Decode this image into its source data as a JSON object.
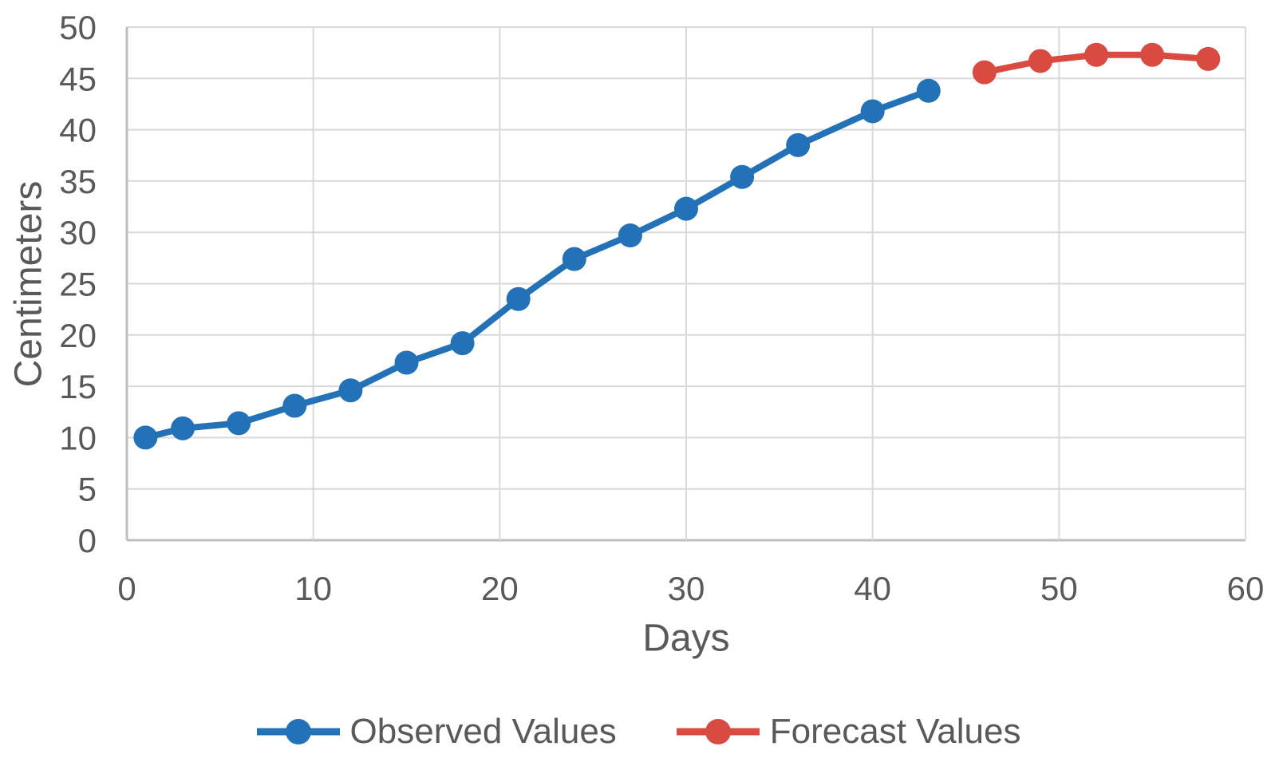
{
  "chart_data": {
    "type": "line",
    "title": "",
    "xlabel": "Days",
    "ylabel": "Centimeters",
    "xlim": [
      0,
      60
    ],
    "ylim": [
      0,
      50
    ],
    "xticks": [
      0,
      10,
      20,
      30,
      40,
      50,
      60
    ],
    "yticks": [
      0,
      5,
      10,
      15,
      20,
      25,
      30,
      35,
      40,
      45,
      50
    ],
    "grid": "both",
    "legend_position": "bottom-center",
    "series": [
      {
        "name": "Observed Values",
        "color": "#2372B7",
        "x": [
          1,
          3,
          6,
          9,
          12,
          15,
          18,
          21,
          24,
          27,
          30,
          33,
          36,
          40,
          43
        ],
        "values": [
          10.0,
          10.9,
          11.4,
          13.1,
          14.6,
          17.3,
          19.2,
          23.5,
          27.4,
          29.7,
          32.3,
          35.4,
          38.5,
          41.8,
          43.8
        ]
      },
      {
        "name": "Forecast Values",
        "color": "#D94A41",
        "x": [
          46,
          49,
          52,
          55,
          58
        ],
        "values": [
          45.6,
          46.7,
          47.3,
          47.3,
          46.9
        ]
      }
    ],
    "styles": {
      "background": "#FFFFFF",
      "gridline_color": "#D9D9D9",
      "axis_line_color": "#BFBFBF",
      "tick_label_color": "#595959",
      "marker_radius": 15,
      "line_width": 8
    }
  }
}
